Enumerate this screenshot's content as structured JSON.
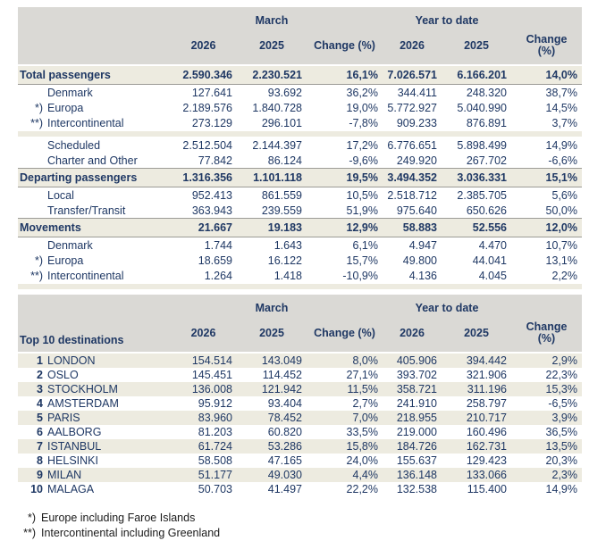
{
  "colors": {
    "navy_text": "#1F3864",
    "header_gray": "#DAD9D5",
    "band_beige": "#EDEBE0",
    "row_border": "#9C9B96",
    "footnote_text": "#1a1a1a",
    "background": "#FFFFFF"
  },
  "header": {
    "march_group": "March",
    "ytd_group": "Year to date",
    "year_2026": "2026",
    "year_2025": "2025",
    "change_full": "Change (%)",
    "change_l1": "Change",
    "change_l2": "(%)"
  },
  "table1": {
    "rows": [
      {
        "type": "section",
        "marker": "",
        "label": "Total passengers",
        "values": [
          "2.590.346",
          "2.230.521",
          "16,1%",
          "7.026.571",
          "6.166.201",
          "14,0%"
        ]
      },
      {
        "type": "sub",
        "marker": "",
        "label": "Denmark",
        "values": [
          "127.641",
          "93.692",
          "36,2%",
          "344.411",
          "248.320",
          "38,7%"
        ]
      },
      {
        "type": "sub",
        "marker": "*)",
        "label": "Europa",
        "values": [
          "2.189.576",
          "1.840.728",
          "19,0%",
          "5.772.927",
          "5.040.990",
          "14,5%"
        ]
      },
      {
        "type": "sub",
        "marker": "**)",
        "label": "Intercontinental",
        "values": [
          "273.129",
          "296.101",
          "-7,8%",
          "909.233",
          "876.891",
          "3,7%"
        ]
      },
      {
        "type": "spacer"
      },
      {
        "type": "sub",
        "marker": "",
        "label": "Scheduled",
        "values": [
          "2.512.504",
          "2.144.397",
          "17,2%",
          "6.776.651",
          "5.898.499",
          "14,9%"
        ]
      },
      {
        "type": "sub",
        "marker": "",
        "label": "Charter and Other",
        "values": [
          "77.842",
          "86.124",
          "-9,6%",
          "249.920",
          "267.702",
          "-6,6%"
        ]
      },
      {
        "type": "section",
        "marker": "",
        "label": "Departing passengers",
        "values": [
          "1.316.356",
          "1.101.118",
          "19,5%",
          "3.494.352",
          "3.036.331",
          "15,1%"
        ]
      },
      {
        "type": "sub",
        "marker": "",
        "label": "Local",
        "values": [
          "952.413",
          "861.559",
          "10,5%",
          "2.518.712",
          "2.385.705",
          "5,6%"
        ]
      },
      {
        "type": "sub",
        "marker": "",
        "label": "Transfer/Transit",
        "values": [
          "363.943",
          "239.559",
          "51,9%",
          "975.640",
          "650.626",
          "50,0%"
        ]
      },
      {
        "type": "section",
        "marker": "",
        "label": "Movements",
        "values": [
          "21.667",
          "19.183",
          "12,9%",
          "58.883",
          "52.556",
          "12,0%"
        ]
      },
      {
        "type": "sub",
        "marker": "",
        "label": "Denmark",
        "values": [
          "1.744",
          "1.643",
          "6,1%",
          "4.947",
          "4.470",
          "10,7%"
        ]
      },
      {
        "type": "sub",
        "marker": "*)",
        "label": "Europa",
        "values": [
          "18.659",
          "16.122",
          "15,7%",
          "49.800",
          "44.041",
          "13,1%"
        ]
      },
      {
        "type": "sub",
        "marker": "**)",
        "label": "Intercontinental",
        "values": [
          "1.264",
          "1.418",
          "-10,9%",
          "4.136",
          "4.045",
          "2,2%"
        ]
      },
      {
        "type": "spacer"
      }
    ]
  },
  "table2": {
    "label_header": "Top 10 destinations",
    "rows": [
      {
        "rank": "1",
        "label": "LONDON",
        "values": [
          "154.514",
          "143.049",
          "8,0%",
          "405.906",
          "394.442",
          "2,9%"
        ]
      },
      {
        "rank": "2",
        "label": "OSLO",
        "values": [
          "145.451",
          "114.452",
          "27,1%",
          "393.702",
          "321.906",
          "22,3%"
        ]
      },
      {
        "rank": "3",
        "label": "STOCKHOLM",
        "values": [
          "136.008",
          "121.942",
          "11,5%",
          "358.721",
          "311.196",
          "15,3%"
        ]
      },
      {
        "rank": "4",
        "label": "AMSTERDAM",
        "values": [
          "95.912",
          "93.404",
          "2,7%",
          "241.910",
          "258.797",
          "-6,5%"
        ]
      },
      {
        "rank": "5",
        "label": "PARIS",
        "values": [
          "83.960",
          "78.452",
          "7,0%",
          "218.955",
          "210.717",
          "3,9%"
        ]
      },
      {
        "rank": "6",
        "label": "AALBORG",
        "values": [
          "81.203",
          "60.820",
          "33,5%",
          "219.000",
          "160.496",
          "36,5%"
        ]
      },
      {
        "rank": "7",
        "label": "ISTANBUL",
        "values": [
          "61.724",
          "53.286",
          "15,8%",
          "184.726",
          "162.731",
          "13,5%"
        ]
      },
      {
        "rank": "8",
        "label": "HELSINKI",
        "values": [
          "58.508",
          "47.165",
          "24,0%",
          "155.637",
          "129.423",
          "20,3%"
        ]
      },
      {
        "rank": "9",
        "label": "MILAN",
        "values": [
          "51.177",
          "49.030",
          "4,4%",
          "136.148",
          "133.066",
          "2,3%"
        ]
      },
      {
        "rank": "10",
        "label": "MALAGA",
        "values": [
          "50.703",
          "41.497",
          "22,2%",
          "132.538",
          "115.400",
          "14,9%"
        ]
      }
    ]
  },
  "footnotes": [
    {
      "marker": "*)",
      "text": "Europe including Faroe Islands"
    },
    {
      "marker": "**)",
      "text": "Intercontinental including Greenland"
    }
  ]
}
